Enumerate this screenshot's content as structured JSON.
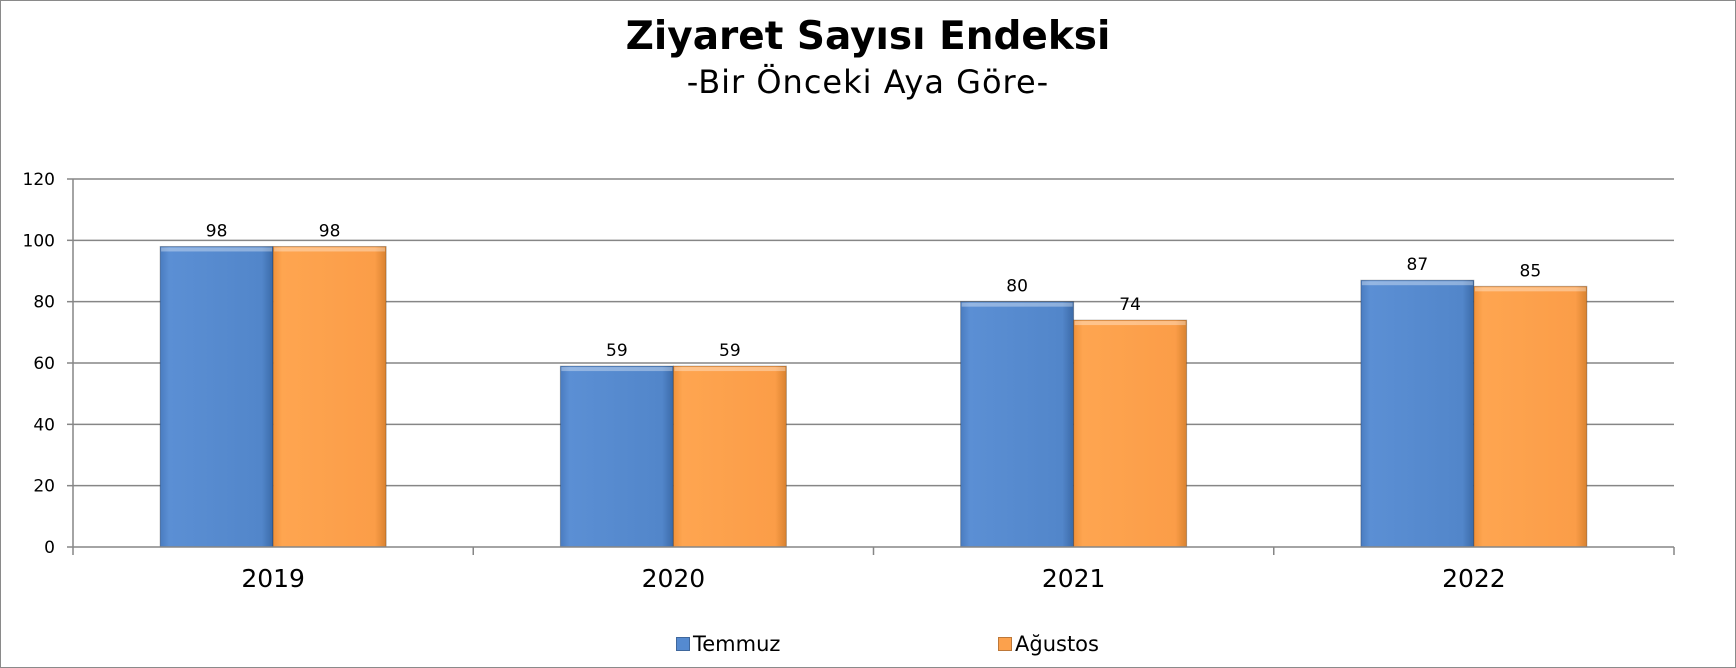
{
  "chart_data": {
    "type": "bar",
    "title": "Ziyaret Sayısı Endeksi",
    "subtitle": "-Bir Önceki Aya Göre-",
    "categories": [
      "2019",
      "2020",
      "2021",
      "2022"
    ],
    "series": [
      {
        "name": "Temmuz",
        "values": [
          98,
          59,
          80,
          87
        ],
        "color": "#558ad0"
      },
      {
        "name": "Ağustos",
        "values": [
          98,
          59,
          74,
          85
        ],
        "color": "#fca14c"
      }
    ],
    "ylim": [
      0,
      120
    ],
    "yticks": [
      "0",
      "20",
      "40",
      "60",
      "80",
      "100",
      "120"
    ],
    "xlabel": "",
    "ylabel": "",
    "grid": true,
    "legend": "bottom"
  }
}
